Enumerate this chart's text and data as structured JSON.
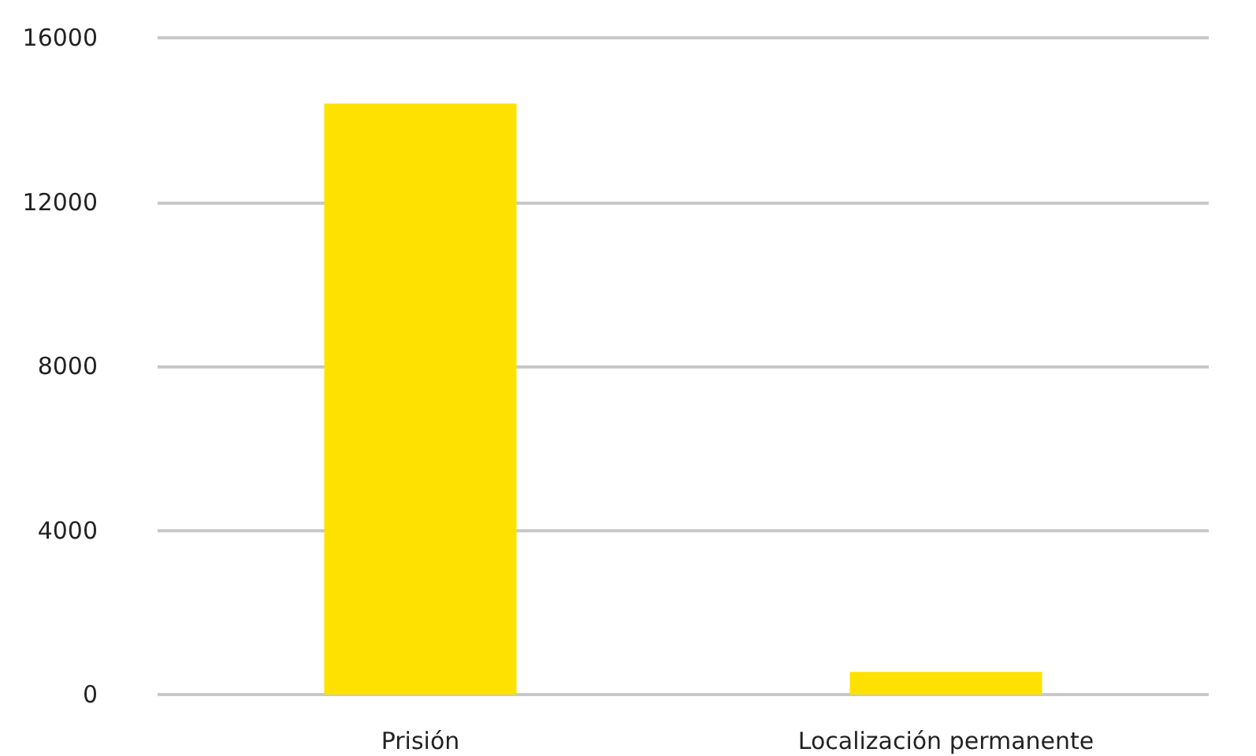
{
  "chart_data": {
    "type": "bar",
    "categories": [
      "Prisión",
      "Localización permanente"
    ],
    "values": [
      14400,
      550
    ],
    "color": "#ffe100",
    "ylim": [
      0,
      16000
    ],
    "yticks": [
      0,
      4000,
      8000,
      12000,
      16000
    ],
    "grid": "y"
  }
}
